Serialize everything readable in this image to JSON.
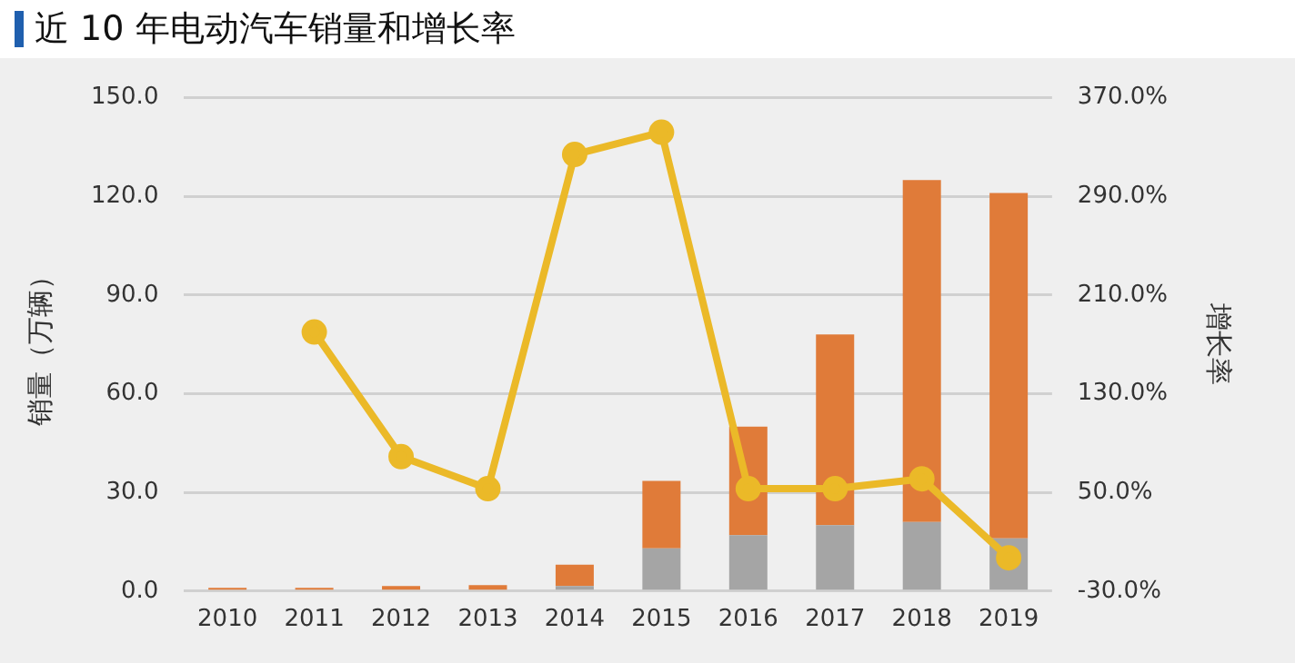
{
  "chart_data": {
    "type": "bar",
    "title": "近 10 年电动汽车销量和增长率",
    "ylabel": "销量（万辆）",
    "y2label": "增长率",
    "categories": [
      "2010",
      "2011",
      "2012",
      "2013",
      "2014",
      "2015",
      "2016",
      "2017",
      "2018",
      "2019"
    ],
    "stacked": true,
    "series": [
      {
        "color": "#a5a5a5",
        "values": [
          0,
          0,
          0,
          0,
          1.5,
          13,
          17,
          20,
          21,
          16
        ]
      },
      {
        "color": "#e07b39",
        "values": [
          1,
          1,
          1.5,
          1.8,
          6.5,
          20.5,
          33,
          58,
          104,
          105
        ]
      },
      {
        "type": "line",
        "axis": "y2",
        "color": "#ebb928",
        "values": [
          null,
          180,
          79,
          53,
          324,
          342,
          53,
          53,
          61,
          -3
        ]
      }
    ],
    "ylim": [
      0,
      150
    ],
    "yticks": [
      {
        "value": 0,
        "label": "0.0"
      },
      {
        "value": 30,
        "label": "30.0"
      },
      {
        "value": 60,
        "label": "60.0"
      },
      {
        "value": 90,
        "label": "90.0"
      },
      {
        "value": 120,
        "label": "120.0"
      },
      {
        "value": 150,
        "label": "150.0"
      }
    ],
    "y2lim": [
      -30,
      370
    ],
    "y2ticks": [
      {
        "value": -30,
        "label": "-30.0%"
      },
      {
        "value": 50,
        "label": "50.0%"
      },
      {
        "value": 130,
        "label": "130.0%"
      },
      {
        "value": 210,
        "label": "210.0%"
      },
      {
        "value": 290,
        "label": "290.0%"
      },
      {
        "value": 370,
        "label": "370.0%"
      }
    ],
    "grid": "y",
    "legend": false,
    "marker": "circle"
  }
}
